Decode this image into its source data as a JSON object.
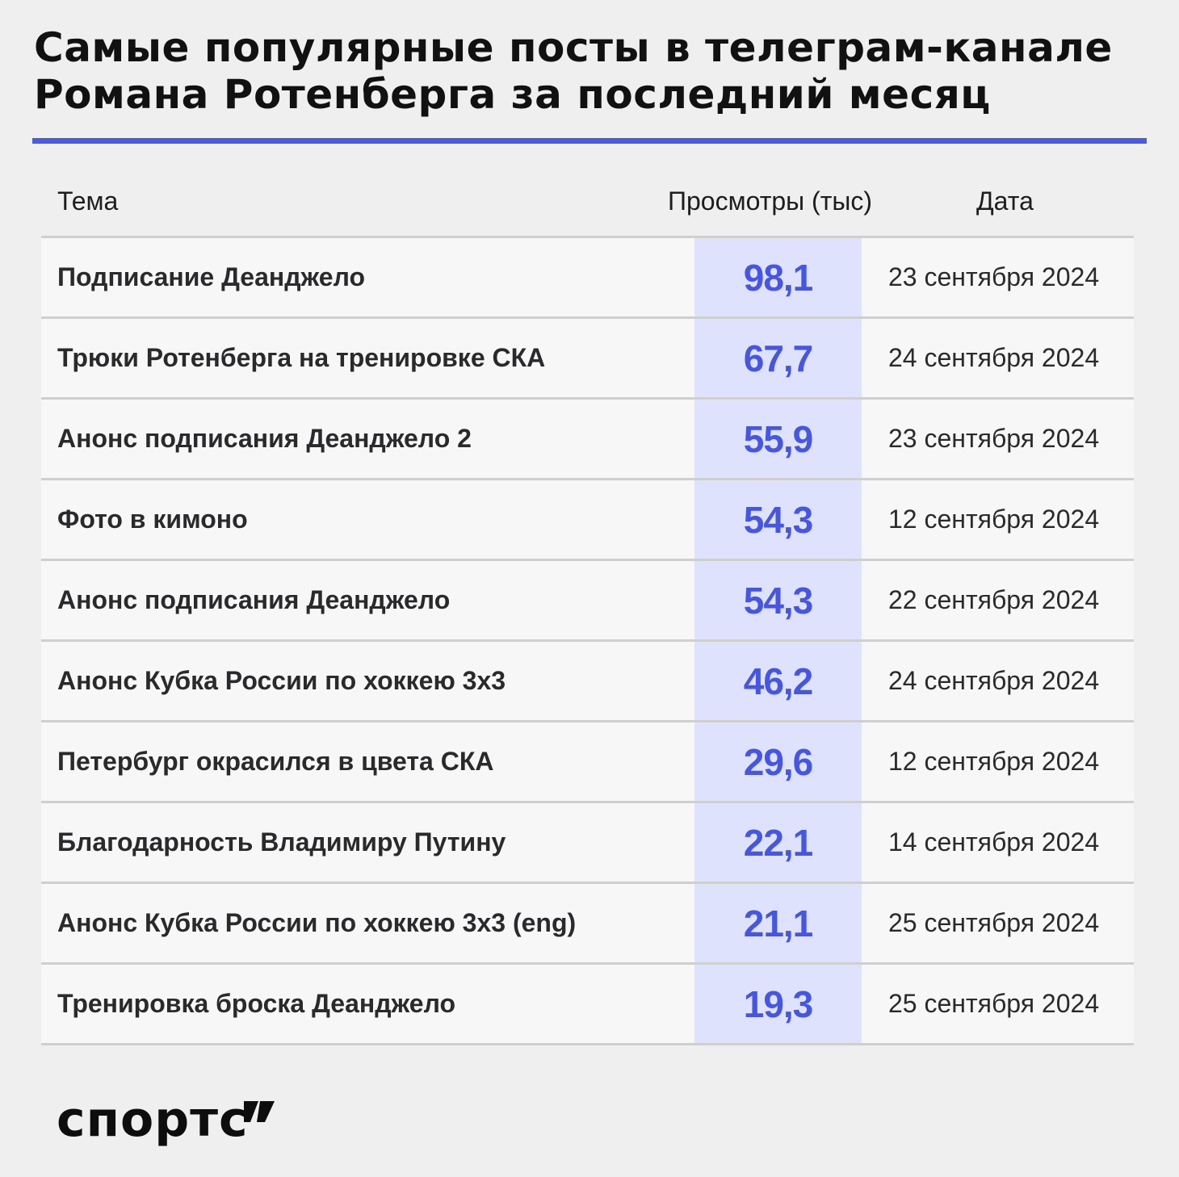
{
  "title": "Самые популярные посты в телеграм-канале Романа Ротенберга за последний месяц",
  "colors": {
    "accent": "#4a5ae8",
    "views_band": "#dfe2fc",
    "views_text": "#4556e4",
    "background": "#efefef"
  },
  "chart_data": {
    "type": "table",
    "columns": [
      "Тема",
      "Просмотры (тыс)",
      "Дата"
    ],
    "rows": [
      {
        "topic": "Подписание Деанджело",
        "views": "98,1",
        "date": "23 сентября 2024"
      },
      {
        "topic": "Трюки Ротенберга на тренировке СКА",
        "views": "67,7",
        "date": "24 сентября 2024"
      },
      {
        "topic": "Анонс подписания Деанджело 2",
        "views": "55,9",
        "date": "23 сентября 2024"
      },
      {
        "topic": "Фото в кимоно",
        "views": "54,3",
        "date": "12 сентября 2024"
      },
      {
        "topic": "Анонс подписания Деанджело",
        "views": "54,3",
        "date": "22 сентября 2024"
      },
      {
        "topic": "Анонс Кубка России по хоккею 3х3",
        "views": "46,2",
        "date": "24 сентября 2024"
      },
      {
        "topic": "Петербург окрасился в цвета СКА",
        "views": "29,6",
        "date": "12 сентября 2024"
      },
      {
        "topic": "Благодарность Владимиру Путину",
        "views": "22,1",
        "date": "14 сентября 2024"
      },
      {
        "topic": "Анонс Кубка России по хоккею 3х3 (eng)",
        "views": "21,1",
        "date": "25 сентября 2024"
      },
      {
        "topic": "Тренировка броска Деанджело",
        "views": "19,3",
        "date": "25 сентября 2024"
      }
    ]
  },
  "logo": {
    "text": "спортс"
  }
}
